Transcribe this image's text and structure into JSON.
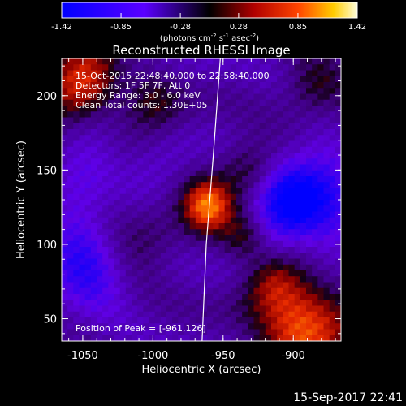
{
  "chart_data": {
    "type": "heatmap",
    "title": "Reconstructed RHESSI Image",
    "xlabel": "Heliocentric X (arcsec)",
    "ylabel": "Heliocentric Y (arcsec)",
    "xlim": [
      -1065,
      -866
    ],
    "ylim": [
      35,
      225
    ],
    "x_ticks": [
      -1050,
      -1000,
      -950,
      -900
    ],
    "y_ticks": [
      50,
      100,
      150,
      200
    ],
    "colorbar": {
      "min": -1.42,
      "max": 1.42,
      "tick_labels": [
        "-1.42",
        "-0.85",
        "-0.28",
        "0.28",
        "0.85",
        "1.42"
      ],
      "units_prefix": "(photons cm",
      "units_sup1": "-2",
      "units_mid": " s",
      "units_sup2": "-1",
      "units_mid2": " asec",
      "units_sup3": "-2",
      "units_suffix": ")"
    },
    "info_lines": [
      "15-Oct-2015 22:48:40.000 to 22:58:40.000",
      "Detectors: 1F 5F 7F, Att 0",
      "Energy Range: 3.0 - 6.0 keV",
      "Clean     Total counts: 1.30E+05"
    ],
    "peak_label": "Position of Peak = [-961,126]",
    "peak": {
      "x": -961,
      "y": 126,
      "value": 1.42
    },
    "sources": [
      {
        "x": -961,
        "y": 126,
        "sigma": 11,
        "amp": 1.4
      },
      {
        "x": -895,
        "y": 45,
        "sigma": 22,
        "amp": 1.3
      },
      {
        "x": -1050,
        "y": 210,
        "sigma": 18,
        "amp": 0.95
      },
      {
        "x": -935,
        "y": 105,
        "sigma": 12,
        "amp": 0.55
      },
      {
        "x": -930,
        "y": 150,
        "sigma": 14,
        "amp": 0.55
      },
      {
        "x": -1005,
        "y": 105,
        "sigma": 16,
        "amp": 0.4
      },
      {
        "x": -1000,
        "y": 200,
        "sigma": 14,
        "amp": 0.45
      },
      {
        "x": -885,
        "y": 205,
        "sigma": 15,
        "amp": 0.45
      },
      {
        "x": -915,
        "y": 75,
        "sigma": 12,
        "amp": 0.4
      },
      {
        "x": -895,
        "y": 130,
        "sigma": 20,
        "amp": -1.3
      },
      {
        "x": -1050,
        "y": 85,
        "sigma": 22,
        "amp": -0.6
      },
      {
        "x": -1035,
        "y": 145,
        "sigma": 18,
        "amp": -0.35
      }
    ],
    "limb_curve_x": [
      -952,
      -957,
      -962,
      -965
    ],
    "limb_curve_y": [
      225,
      160,
      100,
      35
    ]
  },
  "footer": {
    "timestamp": "15-Sep-2017 22:41"
  }
}
